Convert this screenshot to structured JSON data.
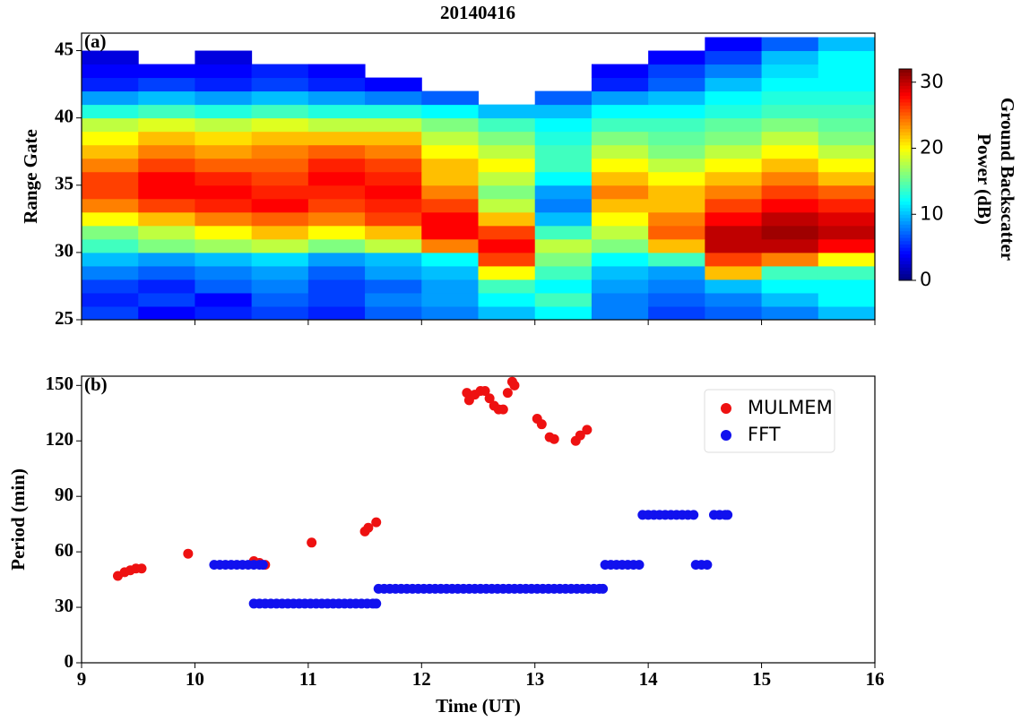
{
  "chart_data": [
    {
      "type": "heatmap",
      "title": "20140416",
      "panel_label": "(a)",
      "y_label": "Range Gate",
      "colorbar_label": [
        "Ground Backscatter",
        "Power (dB)"
      ],
      "colormap": "jet",
      "xlim": [
        9,
        16
      ],
      "ylim": [
        25,
        46.3
      ],
      "yticks": [
        25,
        30,
        35,
        40,
        45
      ],
      "zlim": [
        0,
        32
      ],
      "zticks": [
        0,
        10,
        20,
        30
      ],
      "x": [
        9,
        9.5,
        10,
        10.5,
        11,
        11.5,
        12,
        12.5,
        13,
        13.5,
        14,
        14.5,
        15,
        15.5
      ],
      "y": [
        25,
        26,
        27,
        28,
        29,
        30,
        31,
        32,
        33,
        34,
        35,
        36,
        37,
        38,
        39,
        40,
        41,
        42,
        43,
        44,
        45
      ],
      "z": [
        [
          6,
          4,
          5,
          6,
          5,
          7,
          8,
          10,
          12,
          8,
          6,
          7,
          8,
          10
        ],
        [
          5,
          6,
          4,
          7,
          6,
          8,
          9,
          12,
          14,
          8,
          7,
          8,
          10,
          12
        ],
        [
          6,
          5,
          7,
          8,
          6,
          7,
          9,
          14,
          12,
          9,
          8,
          10,
          12,
          12
        ],
        [
          8,
          7,
          8,
          9,
          7,
          9,
          10,
          20,
          14,
          10,
          9,
          22,
          14,
          14
        ],
        [
          10,
          9,
          10,
          11,
          9,
          10,
          12,
          26,
          16,
          12,
          14,
          26,
          24,
          20
        ],
        [
          14,
          16,
          17,
          18,
          16,
          18,
          24,
          28,
          18,
          16,
          22,
          30,
          30,
          28
        ],
        [
          16,
          18,
          20,
          22,
          20,
          22,
          28,
          26,
          14,
          18,
          25,
          30,
          31,
          30
        ],
        [
          20,
          22,
          24,
          25,
          24,
          26,
          28,
          22,
          10,
          20,
          24,
          28,
          30,
          29
        ],
        [
          24,
          26,
          27,
          28,
          26,
          27,
          26,
          18,
          8,
          22,
          22,
          26,
          28,
          27
        ],
        [
          26,
          28,
          28,
          27,
          27,
          28,
          24,
          16,
          9,
          24,
          22,
          24,
          26,
          25
        ],
        [
          26,
          28,
          27,
          26,
          28,
          27,
          22,
          18,
          12,
          22,
          20,
          22,
          24,
          22
        ],
        [
          24,
          26,
          25,
          25,
          27,
          26,
          22,
          20,
          14,
          20,
          18,
          20,
          22,
          20
        ],
        [
          22,
          24,
          23,
          24,
          25,
          24,
          20,
          18,
          14,
          18,
          16,
          18,
          20,
          18
        ],
        [
          20,
          22,
          21,
          22,
          22,
          22,
          18,
          16,
          13,
          16,
          15,
          16,
          18,
          16
        ],
        [
          18,
          19,
          18,
          19,
          18,
          18,
          16,
          14,
          12,
          14,
          14,
          15,
          16,
          15
        ],
        [
          13,
          14,
          13,
          14,
          13,
          13,
          12,
          10,
          10,
          12,
          12,
          13,
          14,
          14
        ],
        [
          9,
          10,
          9,
          10,
          9,
          8,
          7,
          null,
          7,
          9,
          10,
          12,
          13,
          13
        ],
        [
          5,
          6,
          5,
          6,
          5,
          4,
          null,
          null,
          null,
          5,
          7,
          10,
          12,
          12
        ],
        [
          4,
          4,
          4,
          5,
          4,
          null,
          null,
          null,
          null,
          4,
          6,
          8,
          11,
          12
        ],
        [
          3,
          null,
          3,
          null,
          null,
          null,
          null,
          null,
          null,
          null,
          4,
          6,
          10,
          12
        ],
        [
          null,
          null,
          null,
          null,
          null,
          null,
          null,
          null,
          null,
          null,
          null,
          4,
          7,
          10
        ]
      ]
    },
    {
      "type": "scatter",
      "panel_label": "(b)",
      "x_label": "Time (UT)",
      "y_label": "Period (min)",
      "xlim": [
        9,
        16
      ],
      "xticks": [
        9,
        10,
        11,
        12,
        13,
        14,
        15,
        16
      ],
      "ylim": [
        0,
        155
      ],
      "yticks": [
        0,
        30,
        60,
        90,
        120,
        150
      ],
      "legend": "upper right",
      "series": [
        {
          "name": "MULMEM",
          "color": "#ee1111",
          "x": [
            9.32,
            9.38,
            9.43,
            9.48,
            9.53,
            9.94,
            10.52,
            10.57,
            10.62,
            11.03,
            11.5,
            11.53,
            11.6,
            12.4,
            12.42,
            12.47,
            12.52,
            12.56,
            12.6,
            12.64,
            12.68,
            12.72,
            12.76,
            12.8,
            12.82,
            13.02,
            13.06,
            13.13,
            13.17,
            13.36,
            13.4,
            13.46
          ],
          "values": [
            47,
            49,
            50,
            51,
            51,
            59,
            55,
            54,
            53,
            65,
            71,
            73,
            76,
            146,
            142,
            145,
            147,
            147,
            143,
            139,
            137,
            137,
            146,
            152,
            150,
            132,
            129,
            122,
            121,
            120,
            123,
            126
          ]
        },
        {
          "name": "FFT",
          "color": "#1111ee",
          "x": [
            10.17,
            10.22,
            10.27,
            10.32,
            10.37,
            10.42,
            10.47,
            10.52,
            10.57,
            10.6,
            10.52,
            10.57,
            10.62,
            10.67,
            10.72,
            10.77,
            10.82,
            10.87,
            10.92,
            10.97,
            11.02,
            11.07,
            11.12,
            11.17,
            11.22,
            11.27,
            11.32,
            11.37,
            11.42,
            11.47,
            11.52,
            11.57,
            11.6,
            11.62,
            11.67,
            11.72,
            11.77,
            11.82,
            11.87,
            11.92,
            11.97,
            12.02,
            12.07,
            12.12,
            12.17,
            12.22,
            12.27,
            12.32,
            12.37,
            12.42,
            12.47,
            12.52,
            12.57,
            12.62,
            12.67,
            12.72,
            12.77,
            12.82,
            12.87,
            12.92,
            12.97,
            13.02,
            13.07,
            13.12,
            13.17,
            13.22,
            13.27,
            13.32,
            13.37,
            13.42,
            13.47,
            13.52,
            13.57,
            13.6,
            13.62,
            13.67,
            13.72,
            13.77,
            13.82,
            13.87,
            13.92,
            13.95,
            14.0,
            14.05,
            14.1,
            14.15,
            14.2,
            14.25,
            14.3,
            14.35,
            14.4,
            14.42,
            14.47,
            14.52,
            14.58,
            14.63,
            14.68,
            14.7
          ],
          "values": [
            53,
            53,
            53,
            53,
            53,
            53,
            53,
            53,
            53,
            53,
            32,
            32,
            32,
            32,
            32,
            32,
            32,
            32,
            32,
            32,
            32,
            32,
            32,
            32,
            32,
            32,
            32,
            32,
            32,
            32,
            32,
            32,
            32,
            40,
            40,
            40,
            40,
            40,
            40,
            40,
            40,
            40,
            40,
            40,
            40,
            40,
            40,
            40,
            40,
            40,
            40,
            40,
            40,
            40,
            40,
            40,
            40,
            40,
            40,
            40,
            40,
            40,
            40,
            40,
            40,
            40,
            40,
            40,
            40,
            40,
            40,
            40,
            40,
            40,
            53,
            53,
            53,
            53,
            53,
            53,
            53,
            80,
            80,
            80,
            80,
            80,
            80,
            80,
            80,
            80,
            80,
            53,
            53,
            53,
            80,
            80,
            80,
            80
          ]
        }
      ]
    }
  ]
}
